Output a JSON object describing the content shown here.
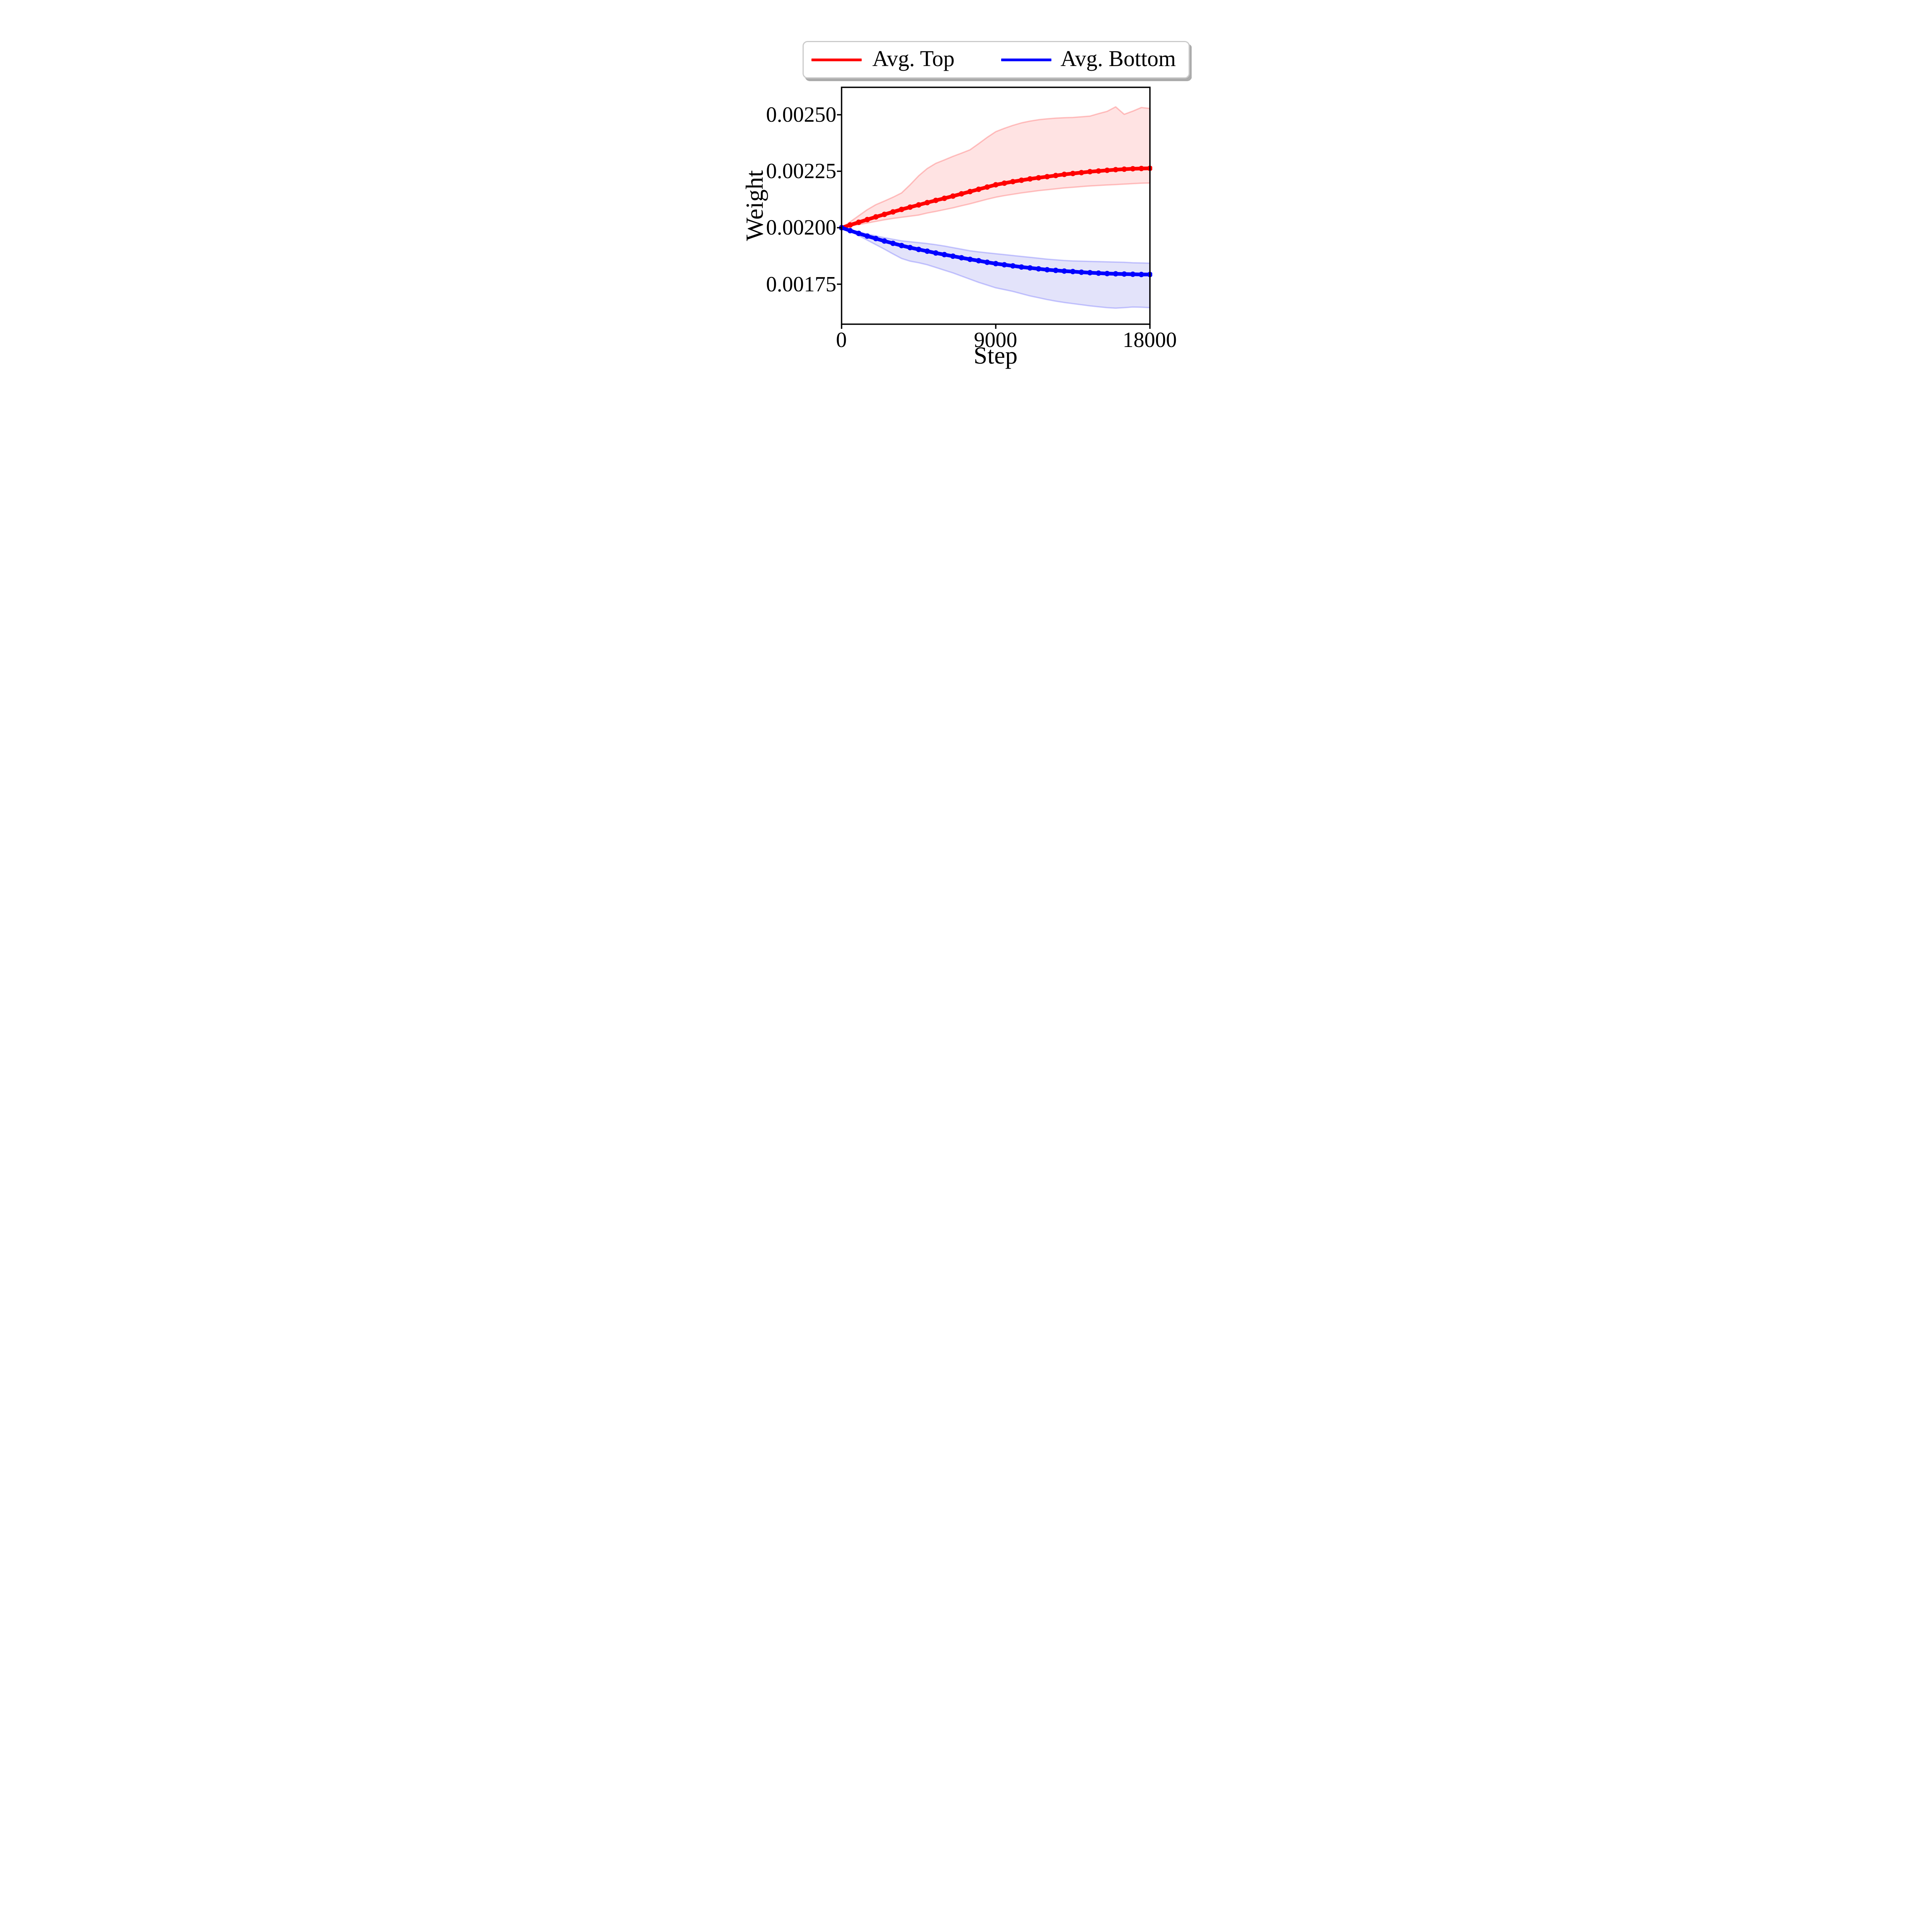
{
  "figure": {
    "background": "#ffffff",
    "plot_background": "#ffffff",
    "frame_color": "#000000"
  },
  "legend": {
    "background": "#ffffff",
    "border_color": "#cbcbcb",
    "shadow_color": "#ababab",
    "entries": [
      {
        "label": "Avg. Top",
        "color": "#ff0000"
      },
      {
        "label": "Avg. Bottom",
        "color": "#0000ff"
      }
    ]
  },
  "axes": {
    "xlabel": "Step",
    "ylabel": "Weight",
    "x_tick_labels": [
      "0",
      "9000",
      "18000"
    ],
    "y_tick_labels": [
      "0.00250",
      "0.00225",
      "0.00200",
      "0.00175"
    ]
  },
  "chart_data": {
    "type": "line",
    "title": "",
    "xlabel": "Step",
    "ylabel": "Weight",
    "xlim": [
      0,
      18000
    ],
    "ylim": [
      0.001573,
      0.0026214
    ],
    "x_ticks": [
      0,
      9000,
      18000
    ],
    "y_ticks": [
      0.0025,
      0.00225,
      0.002,
      0.00175
    ],
    "grid": false,
    "legend_position": "above-plot, 2 columns",
    "marker": "circle",
    "marker_interval_steps": 500,
    "x": [
      0,
      500,
      1000,
      1500,
      2000,
      2500,
      3000,
      3500,
      4000,
      4500,
      5000,
      5500,
      6000,
      6500,
      7000,
      7500,
      8000,
      8500,
      9000,
      9500,
      10000,
      10500,
      11000,
      11500,
      12000,
      12500,
      13000,
      13500,
      14000,
      14500,
      15000,
      15500,
      16000,
      16500,
      17000,
      17500,
      18000
    ],
    "series": [
      {
        "name": "Avg. Top",
        "color": "#ff0000",
        "band_fill": "#ffe3e3",
        "band_edge": "rgba(255,0,0,0.22)",
        "values": [
          0.002,
          0.002012,
          0.002024,
          0.002036,
          0.002048,
          0.002059,
          0.00207,
          0.002081,
          0.002091,
          0.002101,
          0.002111,
          0.002121,
          0.00213,
          0.00214,
          0.00215,
          0.00216,
          0.00217,
          0.00218,
          0.00219,
          0.002197,
          0.002204,
          0.00221,
          0.002216,
          0.002221,
          0.002226,
          0.002231,
          0.002236,
          0.00224,
          0.002244,
          0.002248,
          0.002251,
          0.002254,
          0.002257,
          0.002259,
          0.002261,
          0.002262,
          0.002263
        ],
        "band_upper": [
          0.002,
          0.002026,
          0.002053,
          0.00208,
          0.002102,
          0.002118,
          0.002135,
          0.002154,
          0.00219,
          0.00223,
          0.002262,
          0.002285,
          0.0023,
          0.002316,
          0.00233,
          0.002345,
          0.002372,
          0.0024,
          0.002425,
          0.00244,
          0.002453,
          0.002464,
          0.002472,
          0.002478,
          0.002482,
          0.002485,
          0.002487,
          0.002488,
          0.002491,
          0.002494,
          0.002505,
          0.002515,
          0.002535,
          0.002502,
          0.002516,
          0.002532,
          0.002528
        ],
        "band_lower": [
          0.002,
          0.002007,
          0.002014,
          0.002021,
          0.002028,
          0.002035,
          0.002041,
          0.002046,
          0.002051,
          0.002056,
          0.002065,
          0.002072,
          0.00208,
          0.002088,
          0.002097,
          0.002106,
          0.002116,
          0.002126,
          0.002135,
          0.002142,
          0.002148,
          0.002154,
          0.002159,
          0.002164,
          0.002168,
          0.002172,
          0.002176,
          0.002179,
          0.002182,
          0.002185,
          0.002187,
          0.002189,
          0.002191,
          0.002193,
          0.002195,
          0.002197,
          0.002198
        ]
      },
      {
        "name": "Avg. Bottom",
        "color": "#0000ff",
        "band_fill": "#e3e3fa",
        "band_edge": "rgba(0,0,255,0.20)",
        "values": [
          0.002,
          0.001987,
          0.001975,
          0.001963,
          0.001952,
          0.001941,
          0.001931,
          0.001921,
          0.001912,
          0.001904,
          0.001896,
          0.001888,
          0.001881,
          0.001874,
          0.001867,
          0.00186,
          0.001854,
          0.001847,
          0.001841,
          0.001836,
          0.001831,
          0.001826,
          0.001822,
          0.001818,
          0.001814,
          0.001811,
          0.001808,
          0.001806,
          0.001803,
          0.001801,
          0.001799,
          0.001797,
          0.001796,
          0.001795,
          0.001794,
          0.001793,
          0.001793
        ],
        "band_upper": [
          0.002,
          0.00199,
          0.001981,
          0.001972,
          0.001964,
          0.001956,
          0.001949,
          0.001942,
          0.001938,
          0.001934,
          0.00193,
          0.001925,
          0.001919,
          0.001912,
          0.001905,
          0.001898,
          0.001893,
          0.001889,
          0.001885,
          0.001881,
          0.001877,
          0.001873,
          0.001869,
          0.001865,
          0.001861,
          0.001858,
          0.001855,
          0.001853,
          0.001852,
          0.001851,
          0.00185,
          0.001849,
          0.001848,
          0.001847,
          0.001845,
          0.001844,
          0.001843
        ],
        "band_lower": [
          0.002,
          0.001984,
          0.001965,
          0.001945,
          0.001925,
          0.001905,
          0.001884,
          0.001864,
          0.001852,
          0.001845,
          0.001836,
          0.001824,
          0.001812,
          0.0018,
          0.001786,
          0.001772,
          0.001758,
          0.001746,
          0.001734,
          0.001726,
          0.001718,
          0.001708,
          0.001698,
          0.00169,
          0.001682,
          0.001675,
          0.001669,
          0.001664,
          0.001659,
          0.001654,
          0.00165,
          0.001646,
          0.001644,
          0.001646,
          0.001649,
          0.001648,
          0.001646
        ]
      }
    ]
  }
}
